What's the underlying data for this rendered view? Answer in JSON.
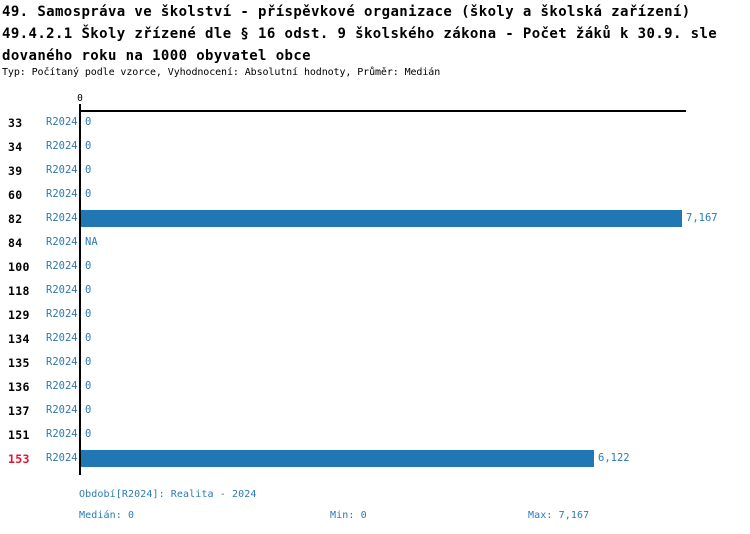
{
  "header": {
    "line1": "49. Samospráva ve školství - příspěvkové organizace (školy a školská zařízení)",
    "line2": "49.4.2.1 Školy zřízené dle § 16 odst. 9 školského zákona - Počet žáků k 30.9. sle",
    "line3": "dovaného roku na 1000 obyvatel obce",
    "meta": "Typ: Počítaný podle vzorce, Vyhodnocení: Absolutní hodnoty, Průměr: Medián"
  },
  "chart_data": {
    "type": "bar",
    "orientation": "horizontal",
    "title": "49.4.2.1 Školy zřízené dle § 16 odst. 9 školského zákona - Počet žáků k 30.9. sledovaného roku na 1000 obyvatel obce",
    "axis_top_tick_label": "0",
    "categories": [
      "33",
      "34",
      "39",
      "60",
      "82",
      "84",
      "100",
      "118",
      "129",
      "134",
      "135",
      "136",
      "137",
      "151",
      "153"
    ],
    "series": [
      {
        "name": "R2024",
        "values": [
          0,
          0,
          0,
          0,
          7167,
          null,
          0,
          0,
          0,
          0,
          0,
          0,
          0,
          0,
          6122
        ],
        "value_labels": [
          "0",
          "0",
          "0",
          "0",
          "7,167",
          "NA",
          "0",
          "0",
          "0",
          "0",
          "0",
          "0",
          "0",
          "0",
          "6,122"
        ]
      }
    ],
    "xlim": [
      0,
      7167
    ],
    "highlighted_category": "153",
    "grid": false,
    "legend_position": "none"
  },
  "footer": {
    "period_line": "Období[R2024]: Realita - 2024",
    "median_label": "Medián: 0",
    "min_label": "Min: 0",
    "max_label": "Max: 7,167"
  },
  "colors": {
    "bar": "#2077b4",
    "blue_text": "#2b7ab5",
    "highlight_red": "#e8112d",
    "axis_black": "#000000"
  }
}
